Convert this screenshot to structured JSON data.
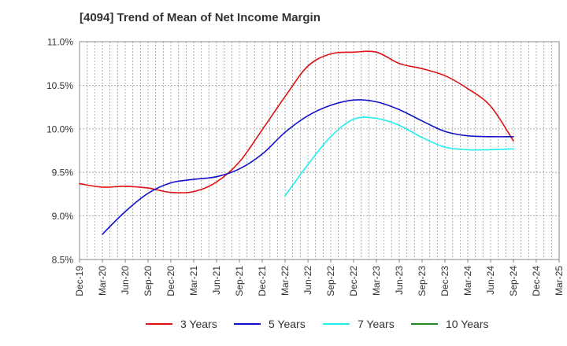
{
  "chart_data": {
    "type": "line",
    "title": "[4094]  Trend of Mean of Net Income Margin",
    "xlabel": "",
    "ylabel": "",
    "x_ticks": [
      "Dec-19",
      "Mar-20",
      "Jun-20",
      "Sep-20",
      "Dec-20",
      "Mar-21",
      "Jun-21",
      "Sep-21",
      "Dec-21",
      "Mar-22",
      "Jun-22",
      "Sep-22",
      "Dec-22",
      "Mar-23",
      "Jun-23",
      "Sep-23",
      "Dec-23",
      "Mar-24",
      "Jun-24",
      "Sep-24",
      "Dec-24",
      "Mar-25"
    ],
    "y_ticks": [
      "8.5%",
      "9.0%",
      "9.5%",
      "10.0%",
      "10.5%",
      "11.0%"
    ],
    "ylim": [
      8.5,
      11.0
    ],
    "y_unit": "%",
    "grid": true,
    "legend_position": "bottom",
    "series": [
      {
        "name": "3 Years",
        "color": "#dd1111",
        "points": [
          [
            "Dec-19",
            9.37
          ],
          [
            "Mar-20",
            9.33
          ],
          [
            "Jun-20",
            9.34
          ],
          [
            "Sep-20",
            9.32
          ],
          [
            "Dec-20",
            9.27
          ],
          [
            "Mar-21",
            9.28
          ],
          [
            "Jun-21",
            9.39
          ],
          [
            "Sep-21",
            9.62
          ],
          [
            "Dec-21",
            9.99
          ],
          [
            "Mar-22",
            10.37
          ],
          [
            "Jun-22",
            10.72
          ],
          [
            "Sep-22",
            10.86
          ],
          [
            "Dec-22",
            10.88
          ],
          [
            "Mar-23",
            10.88
          ],
          [
            "Jun-23",
            10.75
          ],
          [
            "Sep-23",
            10.69
          ],
          [
            "Dec-23",
            10.61
          ],
          [
            "Mar-24",
            10.46
          ],
          [
            "Jun-24",
            10.26
          ],
          [
            "Sep-24",
            9.86
          ]
        ]
      },
      {
        "name": "5 Years",
        "color": "#1111cc",
        "points": [
          [
            "Mar-20",
            8.79
          ],
          [
            "Jun-20",
            9.05
          ],
          [
            "Sep-20",
            9.26
          ],
          [
            "Dec-20",
            9.38
          ],
          [
            "Mar-21",
            9.42
          ],
          [
            "Jun-21",
            9.45
          ],
          [
            "Sep-21",
            9.54
          ],
          [
            "Dec-21",
            9.71
          ],
          [
            "Mar-22",
            9.96
          ],
          [
            "Jun-22",
            10.15
          ],
          [
            "Sep-22",
            10.27
          ],
          [
            "Dec-22",
            10.33
          ],
          [
            "Mar-23",
            10.31
          ],
          [
            "Jun-23",
            10.22
          ],
          [
            "Sep-23",
            10.09
          ],
          [
            "Dec-23",
            9.97
          ],
          [
            "Mar-24",
            9.92
          ],
          [
            "Jun-24",
            9.91
          ],
          [
            "Sep-24",
            9.91
          ]
        ]
      },
      {
        "name": "7 Years",
        "color": "#22eeee",
        "points": [
          [
            "Mar-22",
            9.23
          ],
          [
            "Jun-22",
            9.59
          ],
          [
            "Sep-22",
            9.91
          ],
          [
            "Dec-22",
            10.11
          ],
          [
            "Mar-23",
            10.12
          ],
          [
            "Jun-23",
            10.04
          ],
          [
            "Sep-23",
            9.9
          ],
          [
            "Dec-23",
            9.79
          ],
          [
            "Mar-24",
            9.76
          ],
          [
            "Jun-24",
            9.76
          ],
          [
            "Sep-24",
            9.77
          ]
        ]
      },
      {
        "name": "10 Years",
        "color": "#228822",
        "points": []
      }
    ]
  }
}
